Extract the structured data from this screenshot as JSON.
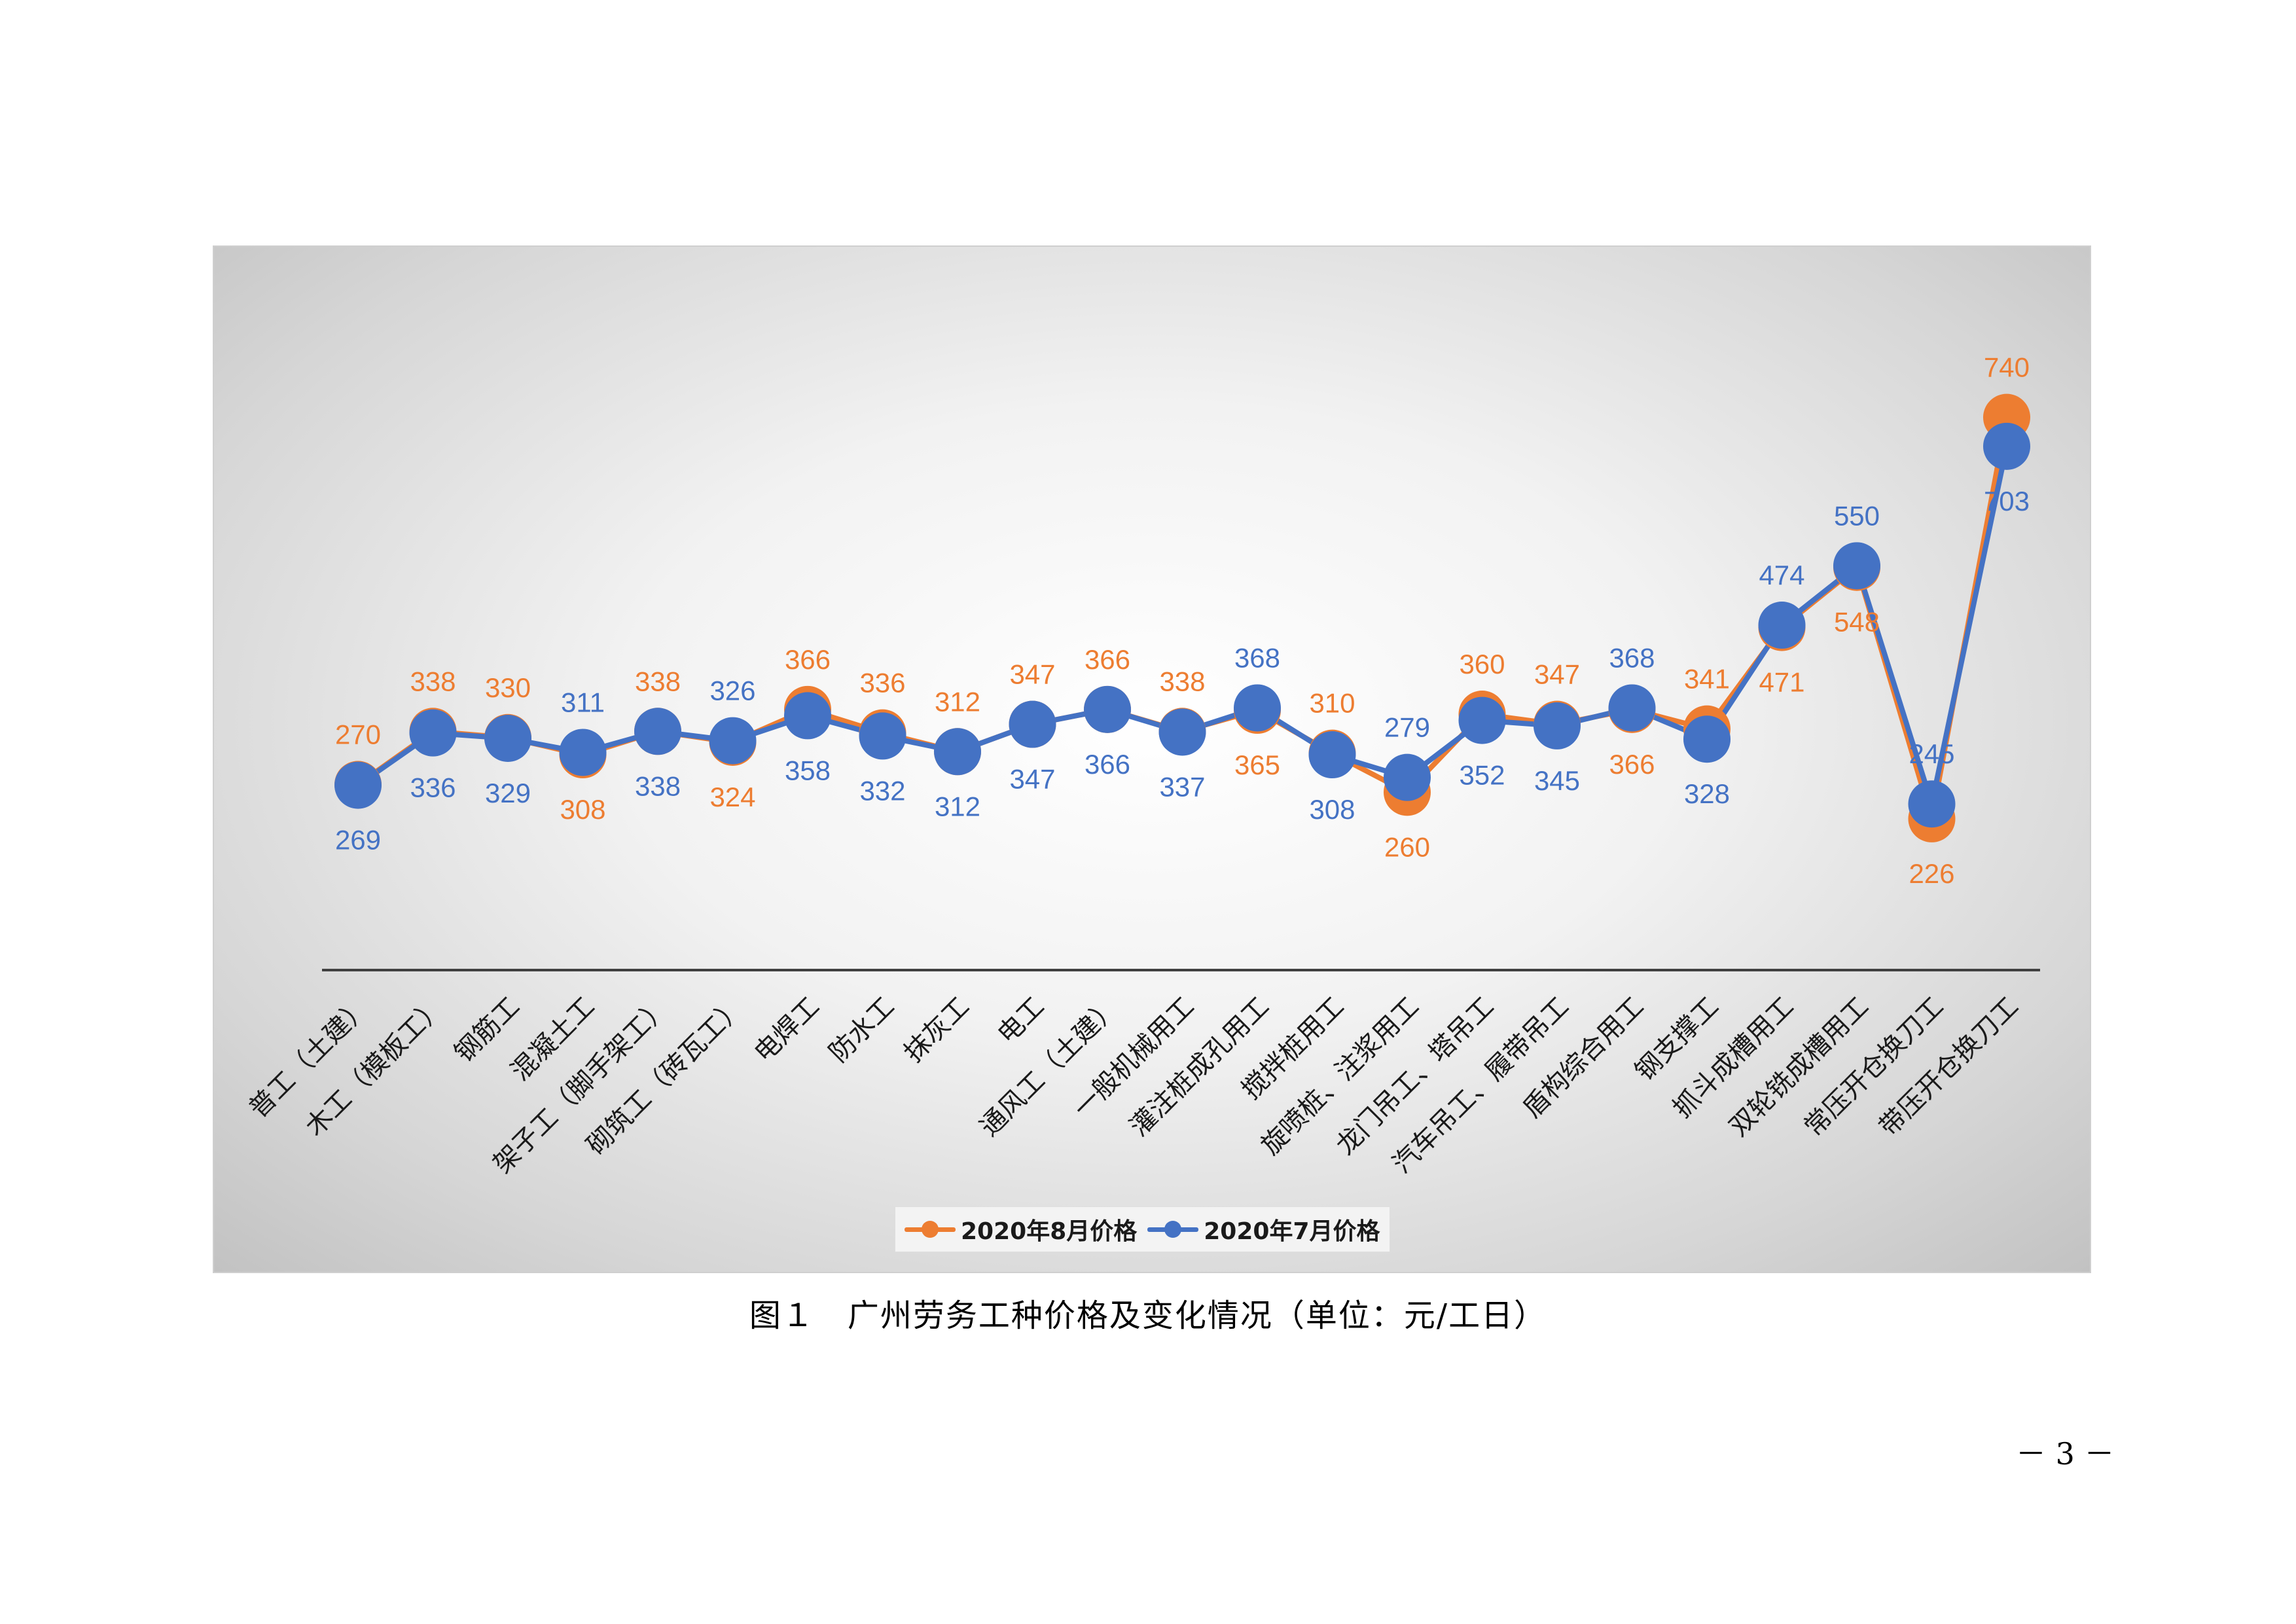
{
  "chart_data": {
    "type": "line",
    "categories": [
      "普工（土建）",
      "木工（模板工）",
      "钢筋工",
      "混凝土工",
      "架子工（脚手架工）",
      "砌筑工（砖瓦工）",
      "电焊工",
      "防水工",
      "抹灰工",
      "电工",
      "通风工（土建）",
      "一般机械用工",
      "灌注桩成孔用工",
      "搅拌桩用工",
      "旋喷桩、注浆用工",
      "龙门吊工、塔吊工",
      "汽车吊工、履带吊工",
      "盾构综合用工",
      "钢支撑工",
      "抓斗成槽用工",
      "双轮铣成槽用工",
      "常压开仓换刀工",
      "带压开仓换刀工"
    ],
    "series": [
      {
        "name": "2020年8月价格",
        "color": "#ED7D31",
        "values": [
          270,
          338,
          330,
          308,
          338,
          324,
          366,
          336,
          312,
          347,
          366,
          338,
          365,
          310,
          260,
          360,
          347,
          366,
          341,
          471,
          548,
          226,
          740
        ]
      },
      {
        "name": "2020年7月价格",
        "color": "#4472C4",
        "values": [
          269,
          336,
          329,
          311,
          338,
          326,
          358,
          332,
          312,
          347,
          366,
          337,
          368,
          308,
          279,
          352,
          345,
          368,
          328,
          474,
          550,
          245,
          703
        ]
      }
    ],
    "legend_position": "bottom",
    "grid": false
  },
  "caption": "图１　广州劳务工种价格及变化情况（单位：元/工日）",
  "page_number": "－ 3 －"
}
